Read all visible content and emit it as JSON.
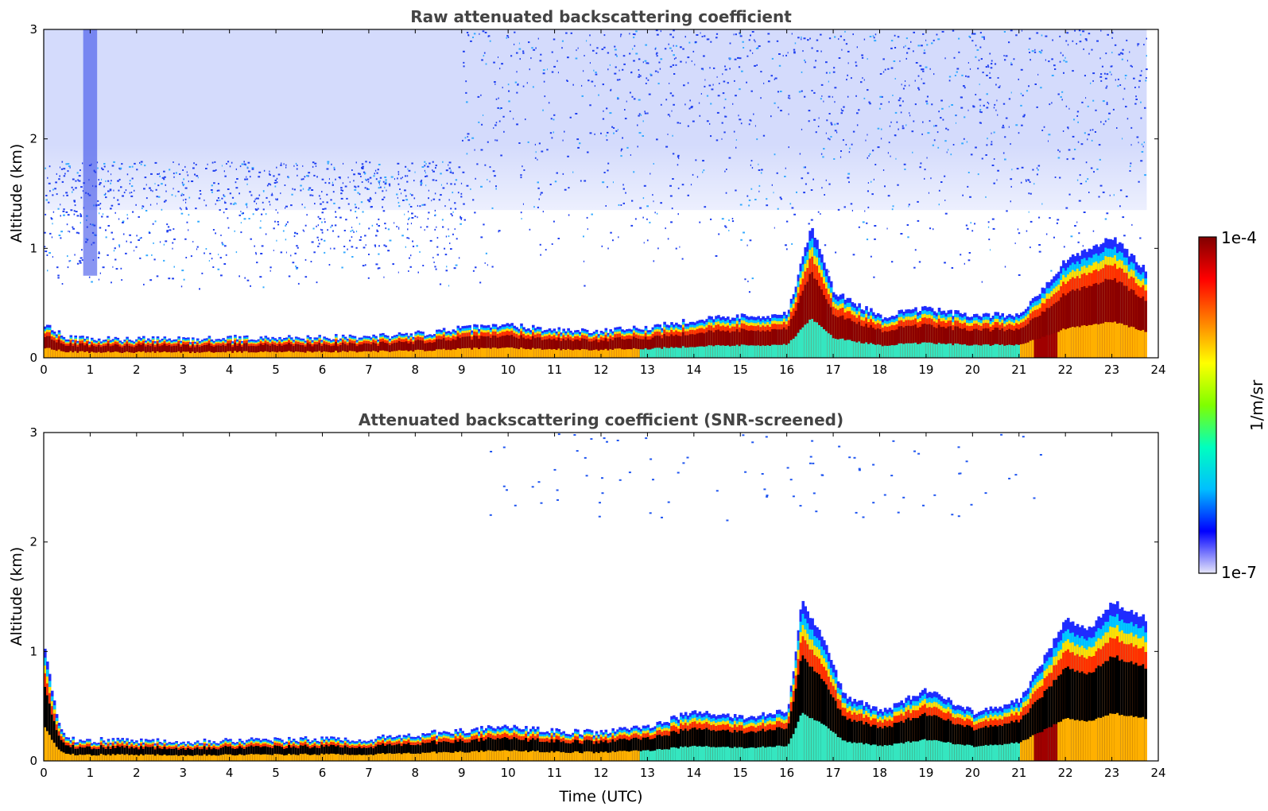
{
  "chart_data": [
    {
      "type": "heatmap",
      "title": "Raw attenuated backscattering coefficient",
      "xlabel": "",
      "ylabel": "Altitude (km)",
      "xlim": [
        0,
        24
      ],
      "ylim": [
        0,
        3
      ],
      "xticks": [
        "0",
        "1",
        "2",
        "3",
        "4",
        "5",
        "6",
        "7",
        "8",
        "9",
        "10",
        "11",
        "12",
        "13",
        "14",
        "15",
        "16",
        "17",
        "18",
        "19",
        "20",
        "21",
        "22",
        "23",
        "24"
      ],
      "yticks": [
        "0",
        "1",
        "2",
        "3"
      ],
      "colormap": "jet",
      "boundary_layer_top_km": [
        {
          "t": 0.0,
          "h": 0.3
        },
        {
          "t": 0.5,
          "h": 0.18
        },
        {
          "t": 1,
          "h": 0.17
        },
        {
          "t": 2,
          "h": 0.17
        },
        {
          "t": 3,
          "h": 0.17
        },
        {
          "t": 4,
          "h": 0.18
        },
        {
          "t": 5,
          "h": 0.18
        },
        {
          "t": 6,
          "h": 0.19
        },
        {
          "t": 7,
          "h": 0.19
        },
        {
          "t": 8,
          "h": 0.22
        },
        {
          "t": 9,
          "h": 0.27
        },
        {
          "t": 10,
          "h": 0.3
        },
        {
          "t": 11,
          "h": 0.26
        },
        {
          "t": 12,
          "h": 0.24
        },
        {
          "t": 13,
          "h": 0.28
        },
        {
          "t": 14,
          "h": 0.35
        },
        {
          "t": 15,
          "h": 0.38
        },
        {
          "t": 16,
          "h": 0.4
        },
        {
          "t": 16.5,
          "h": 1.2
        },
        {
          "t": 17,
          "h": 0.6
        },
        {
          "t": 18,
          "h": 0.38
        },
        {
          "t": 19,
          "h": 0.45
        },
        {
          "t": 20,
          "h": 0.38
        },
        {
          "t": 21,
          "h": 0.4
        },
        {
          "t": 22,
          "h": 0.9
        },
        {
          "t": 23,
          "h": 1.1
        },
        {
          "t": 23.7,
          "h": 0.8
        }
      ]
    },
    {
      "type": "heatmap",
      "title": "Attenuated backscattering coefficient (SNR-screened)",
      "xlabel": "Time (UTC)",
      "ylabel": "Altitude (km)",
      "xlim": [
        0,
        24
      ],
      "ylim": [
        0,
        3
      ],
      "xticks": [
        "0",
        "1",
        "2",
        "3",
        "4",
        "5",
        "6",
        "7",
        "8",
        "9",
        "10",
        "11",
        "12",
        "13",
        "14",
        "15",
        "16",
        "17",
        "18",
        "19",
        "20",
        "21",
        "22",
        "23",
        "24"
      ],
      "yticks": [
        "0",
        "1",
        "2",
        "3"
      ],
      "colormap": "jet",
      "boundary_layer_top_km": [
        {
          "t": 0.0,
          "h": 1.0
        },
        {
          "t": 0.3,
          "h": 0.35
        },
        {
          "t": 0.5,
          "h": 0.2
        },
        {
          "t": 1,
          "h": 0.19
        },
        {
          "t": 2,
          "h": 0.19
        },
        {
          "t": 3,
          "h": 0.18
        },
        {
          "t": 4,
          "h": 0.19
        },
        {
          "t": 5,
          "h": 0.19
        },
        {
          "t": 6,
          "h": 0.2
        },
        {
          "t": 7,
          "h": 0.2
        },
        {
          "t": 8,
          "h": 0.24
        },
        {
          "t": 9,
          "h": 0.28
        },
        {
          "t": 10,
          "h": 0.31
        },
        {
          "t": 11,
          "h": 0.27
        },
        {
          "t": 12,
          "h": 0.26
        },
        {
          "t": 13,
          "h": 0.32
        },
        {
          "t": 14,
          "h": 0.45
        },
        {
          "t": 15,
          "h": 0.4
        },
        {
          "t": 16,
          "h": 0.45
        },
        {
          "t": 16.3,
          "h": 1.45
        },
        {
          "t": 16.8,
          "h": 1.1
        },
        {
          "t": 17.2,
          "h": 0.6
        },
        {
          "t": 18,
          "h": 0.45
        },
        {
          "t": 19,
          "h": 0.65
        },
        {
          "t": 20,
          "h": 0.45
        },
        {
          "t": 21,
          "h": 0.55
        },
        {
          "t": 22,
          "h": 1.3
        },
        {
          "t": 22.5,
          "h": 1.2
        },
        {
          "t": 23,
          "h": 1.45
        },
        {
          "t": 23.7,
          "h": 1.3
        }
      ]
    }
  ],
  "colorbar": {
    "label": "1/m/sr",
    "max_label": "1e-4",
    "min_label": "1e-7",
    "colors": [
      "#e6e6fa",
      "#0000ff",
      "#00bfff",
      "#00ffbf",
      "#7fff00",
      "#ffff00",
      "#ff8000",
      "#ff0000",
      "#800000"
    ]
  }
}
